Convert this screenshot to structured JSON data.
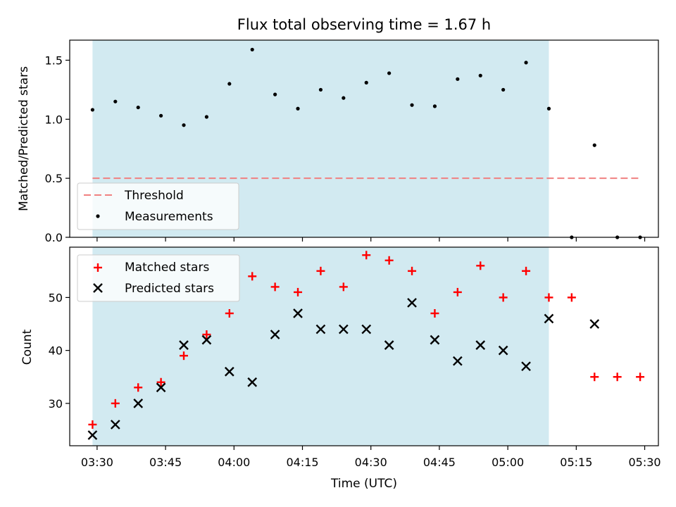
{
  "chart_data": [
    {
      "type": "scatter",
      "title": "Flux total observing time = 1.67 h",
      "xlabel": "",
      "ylabel": "Matched/Predicted stars",
      "ylim": [
        0.0,
        1.67
      ],
      "yticks": [
        0.0,
        0.5,
        1.0,
        1.5
      ],
      "ytick_labels": [
        "0.0",
        "0.5",
        "1.0",
        "1.5"
      ],
      "shaded_region": {
        "x_start": "03:29",
        "x_end": "05:09",
        "color": "#add8e6"
      },
      "threshold": {
        "name": "Threshold",
        "y": 0.5,
        "x_start": "03:29",
        "x_end": "05:29",
        "color": "#f08080"
      },
      "series": [
        {
          "name": "Measurements",
          "color": "#000000",
          "marker": "dot",
          "x": [
            "03:29",
            "03:34",
            "03:39",
            "03:44",
            "03:49",
            "03:54",
            "03:59",
            "04:04",
            "04:09",
            "04:14",
            "04:19",
            "04:24",
            "04:29",
            "04:34",
            "04:39",
            "04:44",
            "04:49",
            "04:54",
            "04:59",
            "05:04",
            "05:09",
            "05:14",
            "05:19",
            "05:24",
            "05:29"
          ],
          "values": [
            1.08,
            1.15,
            1.1,
            1.03,
            0.95,
            1.02,
            1.3,
            1.59,
            1.21,
            1.09,
            1.25,
            1.18,
            1.31,
            1.39,
            1.12,
            1.11,
            1.34,
            1.37,
            1.25,
            1.48,
            1.09,
            0.0,
            0.78,
            0.0,
            0.0
          ]
        }
      ],
      "legend": {
        "position": "bottom-left",
        "entries": [
          "Threshold",
          "Measurements"
        ]
      }
    },
    {
      "type": "scatter",
      "title": "",
      "xlabel": "Time (UTC)",
      "ylabel": "Count",
      "ylim": [
        22,
        59.5
      ],
      "yticks": [
        30,
        40,
        50
      ],
      "ytick_labels": [
        "30",
        "40",
        "50"
      ],
      "xlim": [
        "03:24",
        "05:33"
      ],
      "xticks": [
        "03:30",
        "03:45",
        "04:00",
        "04:15",
        "04:30",
        "04:45",
        "05:00",
        "05:15",
        "05:30"
      ],
      "shaded_region": {
        "x_start": "03:29",
        "x_end": "05:09",
        "color": "#add8e6"
      },
      "series": [
        {
          "name": "Matched stars",
          "color": "#ff0000",
          "marker": "plus",
          "x": [
            "03:29",
            "03:34",
            "03:39",
            "03:44",
            "03:49",
            "03:54",
            "03:59",
            "04:04",
            "04:09",
            "04:14",
            "04:19",
            "04:24",
            "04:29",
            "04:34",
            "04:39",
            "04:44",
            "04:49",
            "04:54",
            "04:59",
            "05:04",
            "05:09",
            "05:14",
            "05:19",
            "05:24",
            "05:29"
          ],
          "values": [
            26,
            30,
            33,
            34,
            39,
            43,
            47,
            54,
            52,
            51,
            55,
            52,
            58,
            57,
            55,
            47,
            51,
            56,
            50,
            55,
            50,
            50,
            35,
            35,
            35
          ]
        },
        {
          "name": "Predicted stars",
          "color": "#000000",
          "marker": "x",
          "x": [
            "03:29",
            "03:34",
            "03:39",
            "03:44",
            "03:49",
            "03:54",
            "03:59",
            "04:04",
            "04:09",
            "04:14",
            "04:19",
            "04:24",
            "04:29",
            "04:34",
            "04:39",
            "04:44",
            "04:49",
            "04:54",
            "04:59",
            "05:04",
            "05:09",
            "05:19"
          ],
          "values": [
            24,
            26,
            30,
            33,
            41,
            42,
            36,
            34,
            43,
            47,
            44,
            44,
            44,
            41,
            49,
            42,
            38,
            41,
            40,
            37,
            46,
            45
          ]
        }
      ],
      "legend": {
        "position": "top-left",
        "entries": [
          "Matched stars",
          "Predicted stars"
        ]
      }
    }
  ]
}
